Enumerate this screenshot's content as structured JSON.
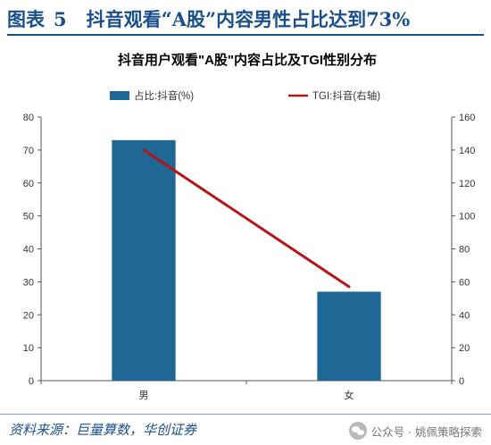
{
  "figure": {
    "label": "图表",
    "number": "5",
    "title": "抖音观看“A股”内容男性占比达到73%"
  },
  "chart_data": {
    "type": "bar",
    "title": "抖音用户观看\"A股\"内容占比及TGI性别分布",
    "categories": [
      "男",
      "女"
    ],
    "series": [
      {
        "name": "占比:抖音(%)",
        "type": "bar",
        "axis": "left",
        "values": [
          73,
          27
        ]
      },
      {
        "name": "TGI:抖音(右轴)",
        "type": "line",
        "axis": "right",
        "values": [
          140,
          57
        ]
      }
    ],
    "ylim": [
      0,
      80
    ],
    "yticks": [
      0,
      10,
      20,
      30,
      40,
      50,
      60,
      70,
      80
    ],
    "y2lim": [
      0,
      160
    ],
    "y2ticks": [
      0,
      20,
      40,
      60,
      80,
      100,
      120,
      140,
      160
    ],
    "legend_position": "top",
    "grid": false,
    "colors": {
      "bar": "#1f6794",
      "line": "#b41515",
      "axis": "#555555"
    }
  },
  "footer": {
    "source": "资料来源：巨量算数，华创证券",
    "watermark": "公众号 · 姚佩策略探索"
  }
}
